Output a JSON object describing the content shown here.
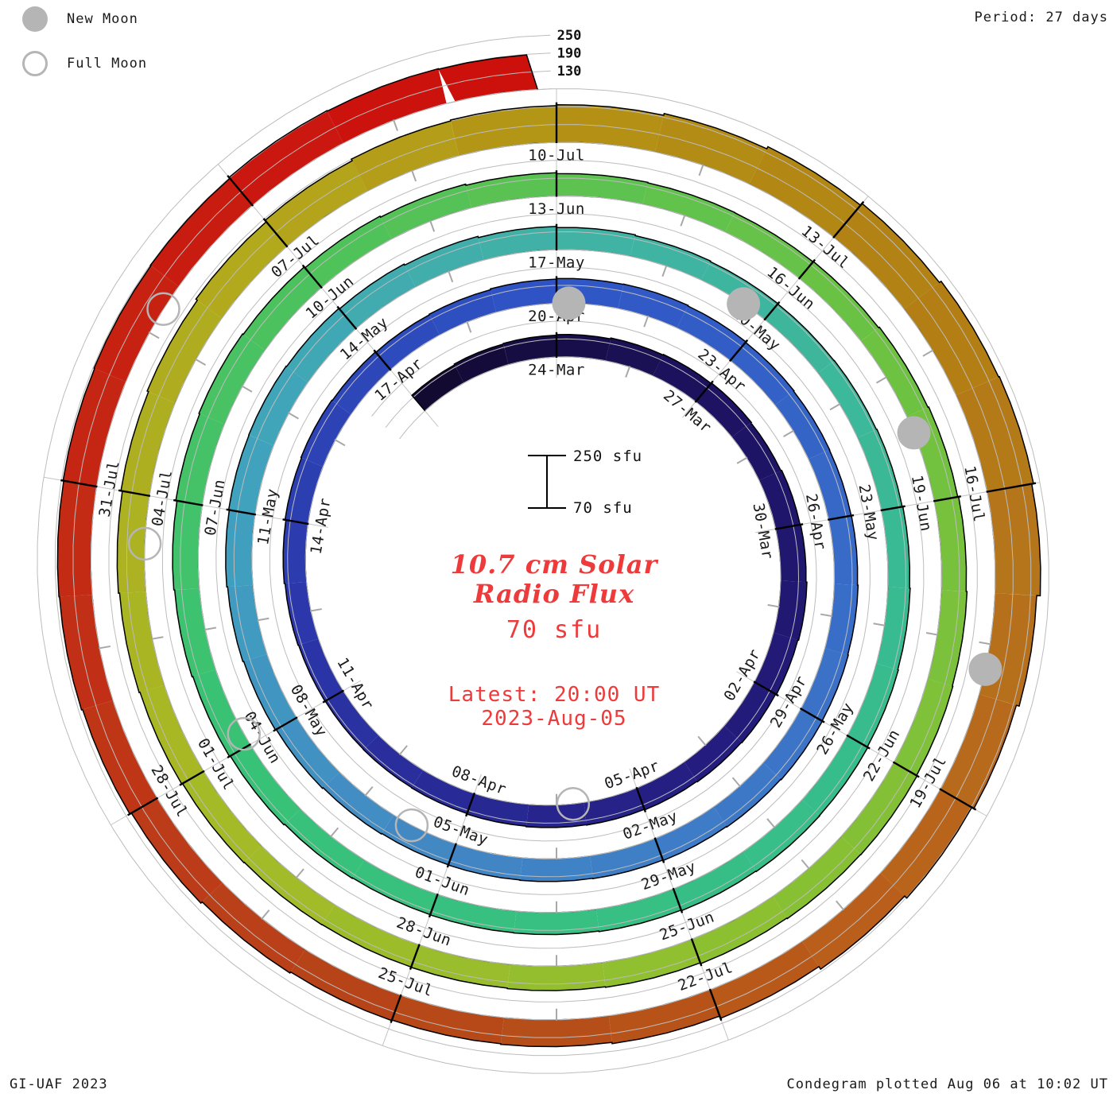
{
  "legend": [
    {
      "label": "New Moon",
      "type": "filled"
    },
    {
      "label": "Full Moon",
      "type": "open"
    }
  ],
  "header": {
    "period_label": "Period: 27 days"
  },
  "footer": {
    "left": "GI-UAF 2023",
    "right": "Condegram plotted Aug 06 at 10:02 UT"
  },
  "center": {
    "title_line1": "10.7 cm Solar",
    "title_line2": "Radio Flux",
    "current_value": "70 sfu",
    "latest_line1": "Latest: 20:00 UT",
    "latest_line2": "2023-Aug-05"
  },
  "scale_bar": {
    "top_label": "250 sfu",
    "bottom_label": "70 sfu"
  },
  "chart_data": {
    "type": "spiral_condegram",
    "title": "10.7 cm Solar Radio Flux",
    "period_days": 27,
    "baseline_sfu": 70,
    "gridlines_sfu": [
      70,
      130,
      190,
      250
    ],
    "radial_axis_labels": [
      "250",
      "190",
      "130"
    ],
    "start_date": "2023-03-21",
    "end_date": "2023-08-05 20:00 UT",
    "flux_sfu": [
      138,
      141,
      143,
      145,
      148,
      150,
      152,
      150,
      153,
      155,
      158,
      155,
      152,
      150,
      148,
      146,
      145,
      143,
      141,
      140,
      139,
      140,
      142,
      145,
      148,
      150,
      148,
      146,
      148,
      151,
      153,
      154,
      152,
      150,
      148,
      147,
      148,
      150,
      152,
      153,
      151,
      149,
      147,
      146,
      145,
      144,
      146,
      149,
      152,
      155,
      158,
      160,
      161,
      159,
      156,
      152,
      148,
      144,
      141,
      139,
      138,
      139,
      141,
      143,
      145,
      147,
      149,
      150,
      148,
      146,
      144,
      143,
      142,
      144,
      147,
      150,
      153,
      156,
      160,
      163,
      160,
      156,
      152,
      148,
      145,
      143,
      142,
      144,
      147,
      150,
      153,
      156,
      158,
      160,
      159,
      157,
      154,
      152,
      150,
      149,
      150,
      152,
      155,
      158,
      162,
      167,
      172,
      178,
      184,
      190,
      193,
      196,
      202,
      210,
      218,
      225,
      228,
      222,
      210,
      200,
      192,
      182,
      172,
      164,
      160,
      158,
      160,
      164,
      170,
      176,
      180,
      182,
      184,
      186,
      188,
      192,
      190,
      188
    ],
    "tick_labels": [
      {
        "d": 3,
        "t": "24-Mar"
      },
      {
        "d": 6,
        "t": "27-Mar"
      },
      {
        "d": 9,
        "t": "30-Mar"
      },
      {
        "d": 12,
        "t": "02-Apr"
      },
      {
        "d": 15,
        "t": "05-Apr"
      },
      {
        "d": 18,
        "t": "08-Apr"
      },
      {
        "d": 21,
        "t": "11-Apr"
      },
      {
        "d": 24,
        "t": "14-Apr"
      },
      {
        "d": 27,
        "t": "17-Apr"
      },
      {
        "d": 30,
        "t": "20-Apr"
      },
      {
        "d": 33,
        "t": "23-Apr"
      },
      {
        "d": 36,
        "t": "26-Apr"
      },
      {
        "d": 39,
        "t": "29-Apr"
      },
      {
        "d": 42,
        "t": "02-May"
      },
      {
        "d": 45,
        "t": "05-May"
      },
      {
        "d": 48,
        "t": "08-May"
      },
      {
        "d": 51,
        "t": "11-May"
      },
      {
        "d": 54,
        "t": "14-May"
      },
      {
        "d": 57,
        "t": "17-May"
      },
      {
        "d": 60,
        "t": "20-May"
      },
      {
        "d": 63,
        "t": "23-May"
      },
      {
        "d": 66,
        "t": "26-May"
      },
      {
        "d": 69,
        "t": "29-May"
      },
      {
        "d": 72,
        "t": "01-Jun"
      },
      {
        "d": 75,
        "t": "04-Jun"
      },
      {
        "d": 78,
        "t": "07-Jun"
      },
      {
        "d": 81,
        "t": "10-Jun"
      },
      {
        "d": 84,
        "t": "13-Jun"
      },
      {
        "d": 87,
        "t": "16-Jun"
      },
      {
        "d": 90,
        "t": "19-Jun"
      },
      {
        "d": 93,
        "t": "22-Jun"
      },
      {
        "d": 96,
        "t": "25-Jun"
      },
      {
        "d": 99,
        "t": "28-Jun"
      },
      {
        "d": 102,
        "t": "01-Jul"
      },
      {
        "d": 105,
        "t": "04-Jul"
      },
      {
        "d": 108,
        "t": "07-Jul"
      },
      {
        "d": 111,
        "t": "10-Jul"
      },
      {
        "d": 114,
        "t": "13-Jul"
      },
      {
        "d": 117,
        "t": "16-Jul"
      },
      {
        "d": 120,
        "t": "19-Jul"
      },
      {
        "d": 123,
        "t": "22-Jul"
      },
      {
        "d": 126,
        "t": "25-Jul"
      },
      {
        "d": 129,
        "t": "28-Jul"
      },
      {
        "d": 132,
        "t": "31-Jul"
      }
    ],
    "moons": [
      {
        "d": 16.2,
        "date": "06-Apr",
        "type": "full"
      },
      {
        "d": 45.7,
        "date": "05-May",
        "type": "full"
      },
      {
        "d": 75.15,
        "date": "04-Jun",
        "type": "full"
      },
      {
        "d": 104.5,
        "date": "03-Jul",
        "type": "full"
      },
      {
        "d": 133.75,
        "date": "01-Aug",
        "type": "full"
      },
      {
        "d": 30.2,
        "date": "20-Apr",
        "type": "new"
      },
      {
        "d": 59.65,
        "date": "19-May",
        "type": "new"
      },
      {
        "d": 89.2,
        "date": "18-Jun",
        "type": "new"
      },
      {
        "d": 118.75,
        "date": "17-Jul",
        "type": "new"
      }
    ],
    "color_stops": [
      {
        "d": 0,
        "c": "#12092e"
      },
      {
        "d": 6,
        "c": "#1c1260"
      },
      {
        "d": 14,
        "c": "#251d80"
      },
      {
        "d": 22,
        "c": "#2b35a8"
      },
      {
        "d": 30,
        "c": "#2f55c6"
      },
      {
        "d": 38,
        "c": "#3a70c8"
      },
      {
        "d": 45,
        "c": "#4287c5"
      },
      {
        "d": 51,
        "c": "#40a0be"
      },
      {
        "d": 57,
        "c": "#41b2a6"
      },
      {
        "d": 66,
        "c": "#37bd8d"
      },
      {
        "d": 75,
        "c": "#37c276"
      },
      {
        "d": 82,
        "c": "#52c258"
      },
      {
        "d": 88,
        "c": "#6cc243"
      },
      {
        "d": 95,
        "c": "#8ac032"
      },
      {
        "d": 102,
        "c": "#a7b926"
      },
      {
        "d": 108,
        "c": "#b3a81c"
      },
      {
        "d": 111,
        "c": "#b49215"
      },
      {
        "d": 115,
        "c": "#b28114"
      },
      {
        "d": 118,
        "c": "#b5731c"
      },
      {
        "d": 121,
        "c": "#ba611b"
      },
      {
        "d": 124,
        "c": "#b65019"
      },
      {
        "d": 127,
        "c": "#b74219"
      },
      {
        "d": 130,
        "c": "#c03317"
      },
      {
        "d": 133,
        "c": "#c62313"
      },
      {
        "d": 137,
        "c": "#cc100c"
      }
    ],
    "legend_position": "top-left",
    "grid": true,
    "moon_color": "#b5b5b5",
    "accent_red": "#ee3a3a"
  }
}
